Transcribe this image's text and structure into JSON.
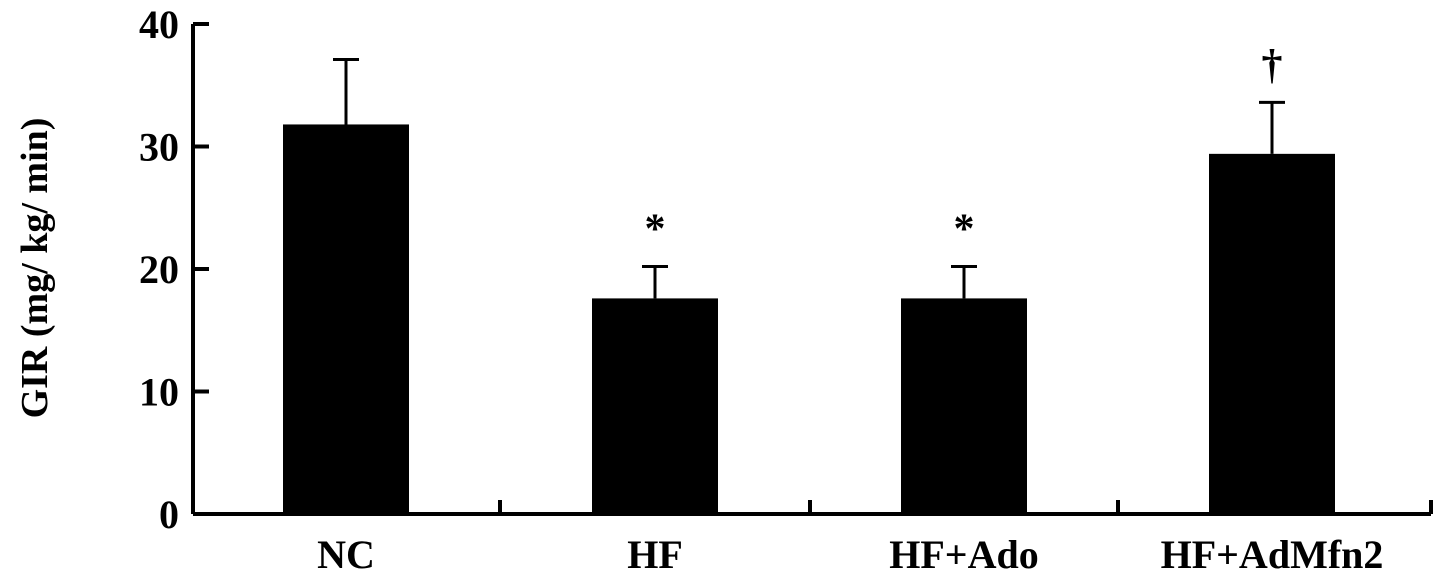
{
  "chart_data": {
    "type": "bar",
    "title": "",
    "xlabel": "",
    "ylabel": "GIR (mg/ kg/ min)",
    "categories": [
      "NC",
      "HF",
      "HF+Ado",
      "HF+AdMfn2"
    ],
    "values": [
      31.8,
      17.6,
      17.6,
      29.4
    ],
    "errors": [
      5.3,
      2.6,
      2.6,
      4.2
    ],
    "annotations": [
      "",
      "*",
      "*",
      "†"
    ],
    "ylim": [
      0,
      40
    ],
    "yticks": [
      0,
      10,
      20,
      30,
      40
    ],
    "grid": false,
    "legend": "none",
    "bar_color": "#000000"
  }
}
